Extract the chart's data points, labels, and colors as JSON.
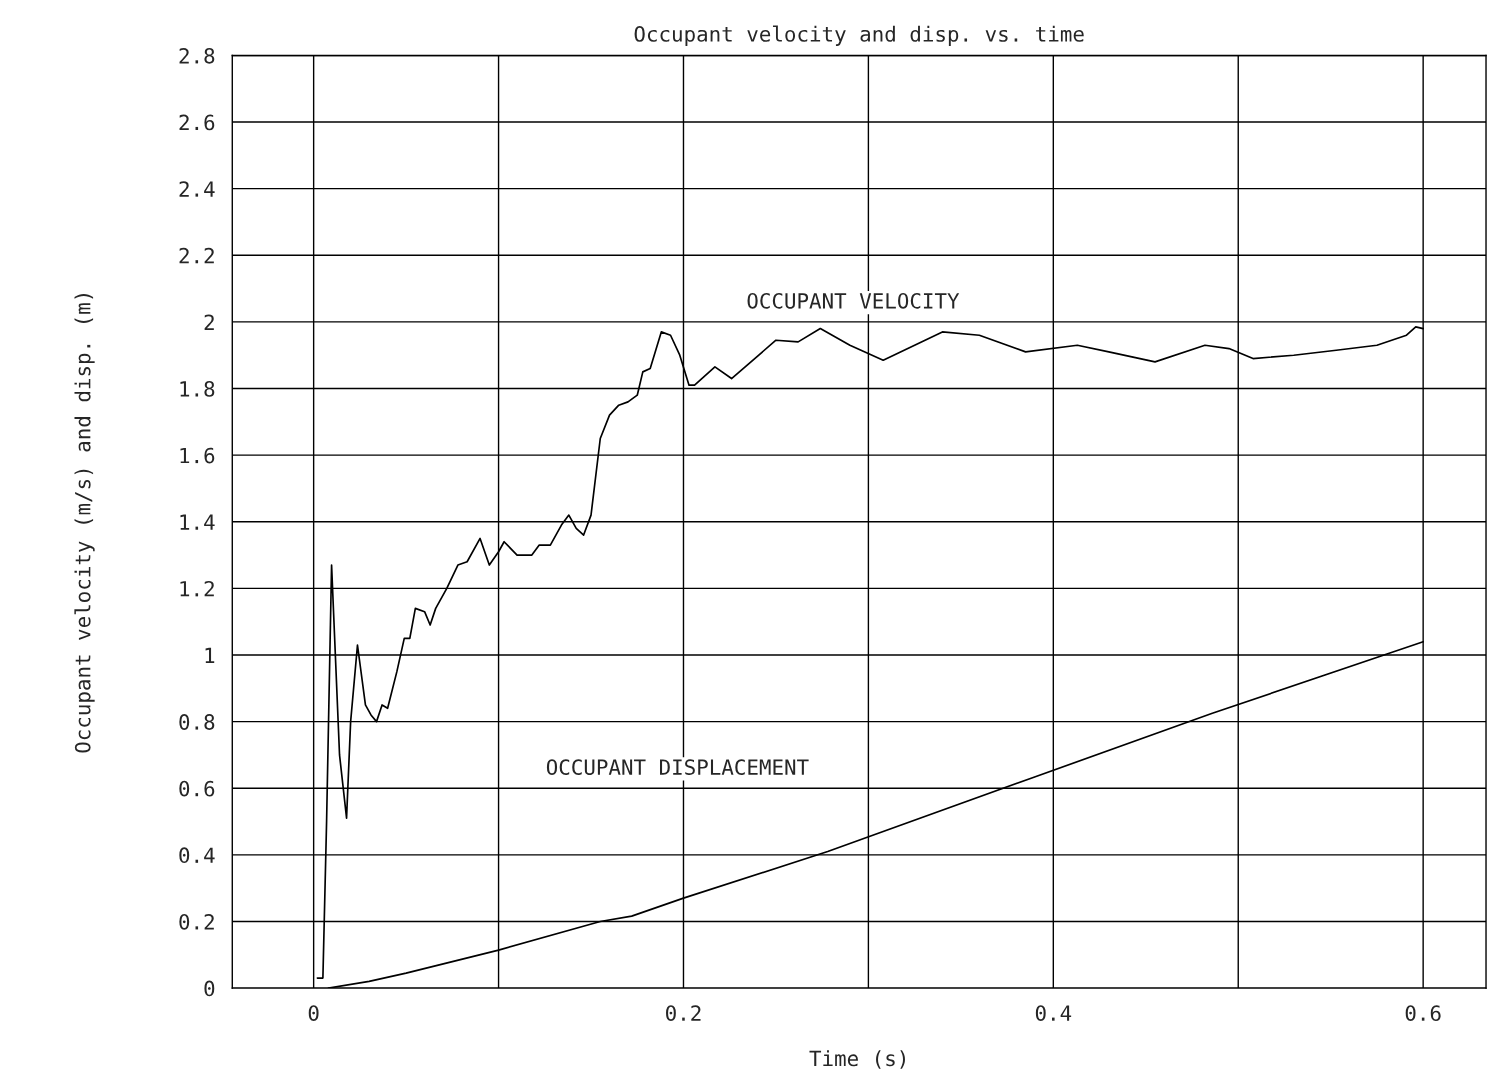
{
  "chart_data": {
    "type": "line",
    "title": "Occupant velocity and disp. vs. time",
    "xlabel": "Time (s)",
    "ylabel": "Occupant velocity (m/s) and disp. (m)",
    "series": [
      {
        "color": "#000000",
        "x": [
          0.002,
          0.005,
          0.007,
          0.0097,
          0.014,
          0.0178,
          0.02,
          0.0237,
          0.028,
          0.031,
          0.034,
          0.037,
          0.04,
          0.045,
          0.049,
          0.052,
          0.055,
          0.06,
          0.063,
          0.066,
          0.072,
          0.078,
          0.083,
          0.09,
          0.095,
          0.1,
          0.103,
          0.11,
          0.118,
          0.122,
          0.128,
          0.134,
          0.138,
          0.142,
          0.146,
          0.15,
          0.155,
          0.16,
          0.165,
          0.17,
          0.175,
          0.178,
          0.182,
          0.188,
          0.193,
          0.198,
          0.203,
          0.206,
          0.217,
          0.226,
          0.25,
          0.262,
          0.274,
          0.29,
          0.308,
          0.34,
          0.36,
          0.385,
          0.413,
          0.43,
          0.455,
          0.482,
          0.495,
          0.508,
          0.53,
          0.553,
          0.575,
          0.591,
          0.596,
          0.6
        ],
        "values": [
          0.03,
          0.03,
          0.5,
          1.27,
          0.7,
          0.51,
          0.8,
          1.03,
          0.85,
          0.82,
          0.8,
          0.85,
          0.84,
          0.95,
          1.05,
          1.05,
          1.14,
          1.13,
          1.09,
          1.14,
          1.2,
          1.27,
          1.28,
          1.35,
          1.27,
          1.31,
          1.34,
          1.3,
          1.3,
          1.33,
          1.33,
          1.39,
          1.42,
          1.38,
          1.36,
          1.42,
          1.65,
          1.72,
          1.75,
          1.76,
          1.78,
          1.85,
          1.86,
          1.97,
          1.96,
          1.9,
          1.81,
          1.81,
          1.865,
          1.83,
          1.945,
          1.94,
          1.98,
          1.93,
          1.885,
          1.97,
          1.96,
          1.91,
          1.93,
          1.91,
          1.88,
          1.93,
          1.92,
          1.89,
          1.9,
          1.915,
          1.93,
          1.96,
          1.985,
          1.98
        ]
      },
      {
        "color": "#000000",
        "x": [
          0.008,
          0.03,
          0.05,
          0.1,
          0.155,
          0.172,
          0.2,
          0.278,
          0.388,
          0.486,
          0.6
        ],
        "values": [
          0,
          0.02,
          0.045,
          0.114,
          0.2,
          0.216,
          0.27,
          0.41,
          0.63,
          0.825,
          1.04
        ]
      }
    ],
    "annotations": [
      "OCCUPANT VELOCITY",
      "OCCUPANT DISPLACEMENT"
    ],
    "xlim": [
      -0.044,
      0.634
    ],
    "ylim": [
      0,
      2.8
    ],
    "xticks": [
      0,
      {
        "value": 0.1,
        "label": null
      },
      0.2,
      {
        "value": 0.3,
        "label": null
      },
      0.4,
      {
        "value": 0.5,
        "label": null
      },
      0.6
    ],
    "yticks": [
      0,
      0.2,
      0.4,
      0.6,
      0.8,
      1,
      1.2,
      1.4,
      1.6,
      1.8,
      2,
      2.2,
      2.4,
      2.6,
      2.8
    ],
    "grid": true,
    "legend": false,
    "line_style": "solid",
    "marker": "none"
  }
}
